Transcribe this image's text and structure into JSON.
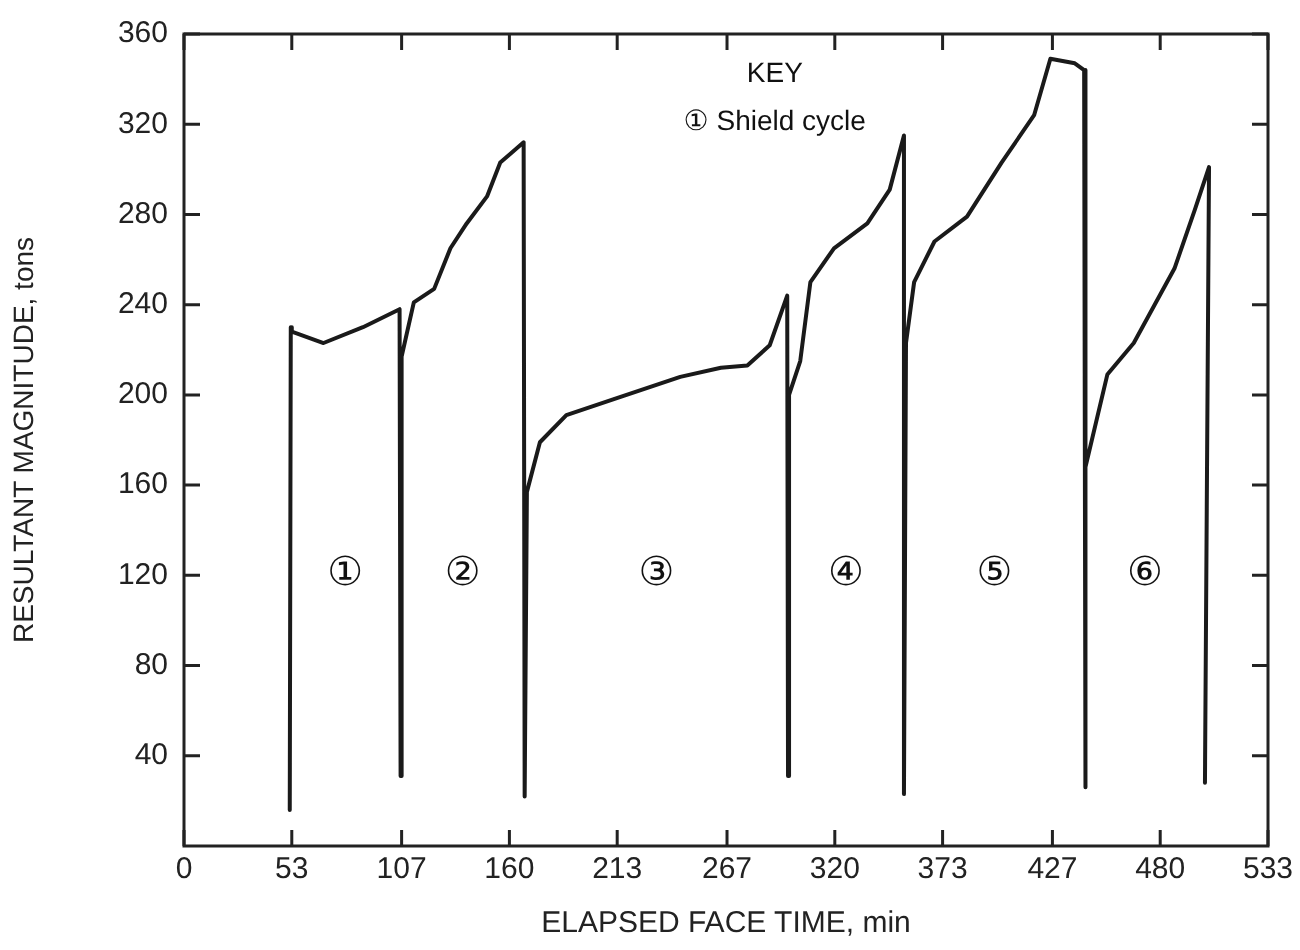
{
  "chart_data": {
    "type": "line",
    "xlabel": "ELAPSED FACE TIME, min",
    "ylabel": "RESULTANT MAGNITUDE, tons",
    "x": [
      52,
      52.5,
      53,
      68.6,
      88,
      106,
      106.5,
      107,
      113,
      123,
      131,
      139,
      149,
      155.5,
      167,
      167.5,
      168.6,
      175,
      188,
      211,
      244,
      264,
      277,
      288,
      296.6,
      297,
      297.5,
      303,
      308,
      319.6,
      336,
      347,
      354,
      354,
      355,
      359,
      369,
      385,
      402,
      418,
      426,
      432,
      438,
      442.6,
      443,
      443.5,
      454,
      467,
      487,
      497,
      504,
      502
    ],
    "values": [
      16,
      230,
      228,
      223,
      230,
      238,
      31,
      217,
      241,
      247,
      265,
      276,
      288,
      303,
      312,
      22,
      157,
      179,
      191,
      198,
      208,
      212,
      213,
      222,
      244,
      31,
      200,
      215,
      250,
      265,
      276,
      291,
      315,
      23,
      223,
      250,
      268,
      279,
      303,
      324,
      349,
      348,
      347,
      344,
      26,
      168,
      209,
      223,
      256,
      282,
      301,
      28
    ],
    "color": "#1a1a1a",
    "marker": "none",
    "line_style": "solid",
    "grid": false,
    "legend": false,
    "xlim": [
      0,
      533
    ],
    "xticks": [
      0,
      53,
      107,
      160,
      213,
      267,
      320,
      373,
      427,
      480,
      533
    ],
    "ylim": [
      0,
      360
    ],
    "yticks": [
      40,
      80,
      120,
      160,
      200,
      240,
      280,
      320,
      360
    ],
    "annotations": [
      "KEY",
      "① Shield cycle",
      "①",
      "②",
      "③",
      "④",
      "⑤",
      "⑥"
    ]
  }
}
